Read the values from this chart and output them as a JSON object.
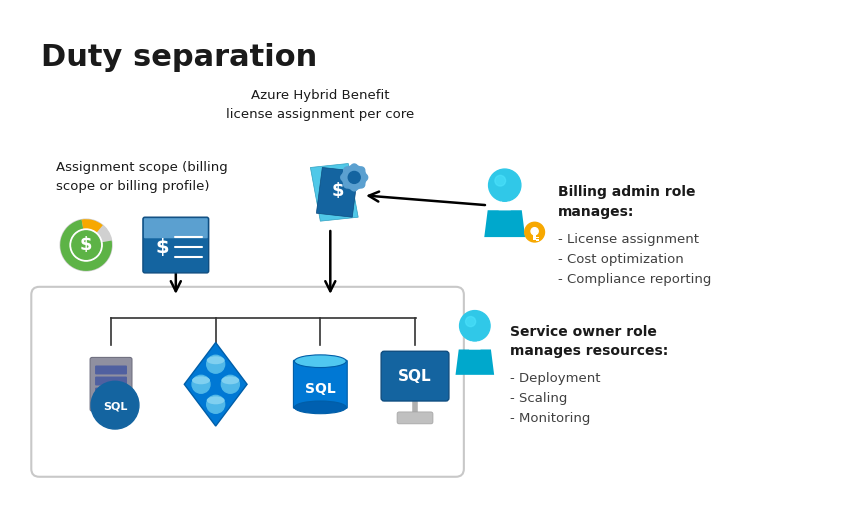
{
  "title": "Duty separation",
  "bg_color": "#ffffff",
  "font_color": "#1a1a1a",
  "color_blue": "#0078d4",
  "color_mid_blue": "#1e5ca8",
  "color_dark_blue": "#003087",
  "color_teal": "#00b4d8",
  "color_light_teal": "#50e6ff",
  "color_gray": "#8a8a8a",
  "color_light_gray": "#c8c8c8",
  "color_border": "#c8c8c8",
  "color_green": "#107c41",
  "color_yellow": "#f7a800",
  "color_diamond_blue": "#0078d4",
  "azure_hybrid_label": "Azure Hybrid Benefit\nlicense assignment per core",
  "assignment_scope_label": "Assignment scope (billing\nscope or billing profile)",
  "billing_admin_title": "Billing admin role\nmanages:",
  "billing_admin_items": [
    "- License assignment",
    "- Cost optimization",
    "- Compliance reporting"
  ],
  "service_owner_title": "Service owner role\nmanages resources:",
  "service_owner_items": [
    "- Deployment",
    "- Scaling",
    "- Monitoring"
  ]
}
